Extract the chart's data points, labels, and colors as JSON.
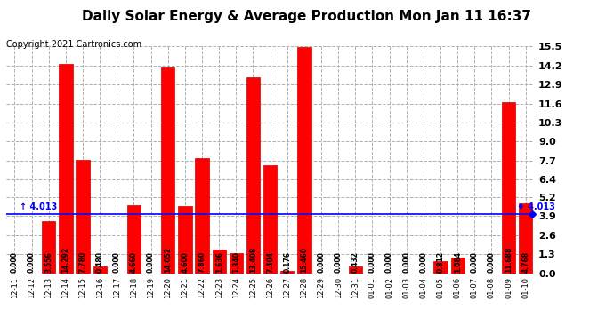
{
  "title": "Daily Solar Energy & Average Production Mon Jan 11 16:37",
  "copyright": "Copyright 2021 Cartronics.com",
  "categories": [
    "12-11",
    "12-12",
    "12-13",
    "12-14",
    "12-15",
    "12-16",
    "12-17",
    "12-18",
    "12-19",
    "12-20",
    "12-21",
    "12-22",
    "12-23",
    "12-24",
    "12-25",
    "12-26",
    "12-27",
    "12-28",
    "12-29",
    "12-30",
    "12-31",
    "01-01",
    "01-02",
    "01-03",
    "01-04",
    "01-05",
    "01-06",
    "01-07",
    "01-08",
    "01-09",
    "01-10"
  ],
  "values": [
    0.0,
    0.0,
    3.556,
    14.292,
    7.78,
    0.48,
    0.0,
    4.66,
    0.0,
    14.052,
    4.6,
    7.86,
    1.636,
    1.34,
    13.408,
    7.404,
    0.176,
    15.46,
    0.0,
    0.0,
    0.432,
    0.0,
    0.0,
    0.0,
    0.0,
    0.812,
    1.084,
    0.0,
    0.0,
    11.688,
    4.768
  ],
  "average": 4.013,
  "bar_color": "#ff0000",
  "avg_line_color": "#0000ff",
  "avg_label_color": "#0000ff",
  "daily_label_color": "#ff0000",
  "title_color": "#000000",
  "yticks": [
    0.0,
    1.3,
    2.6,
    3.9,
    5.2,
    6.4,
    7.7,
    9.0,
    10.3,
    11.6,
    12.9,
    14.2,
    15.5
  ],
  "ylim": [
    0,
    15.5
  ],
  "background_color": "#ffffff",
  "grid_color": "#b0b0b0",
  "bar_edge_color": "#cc0000",
  "value_fontsize": 5.5,
  "avg_value_text": "4.013",
  "title_fontsize": 11,
  "copyright_fontsize": 7,
  "legend_fontsize": 8,
  "ytick_fontsize": 8,
  "xtick_fontsize": 6
}
